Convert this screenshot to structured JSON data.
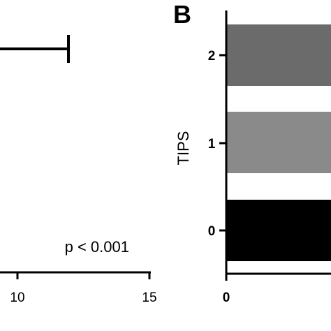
{
  "chart_data": [
    {
      "type": "scatter",
      "panel": "",
      "title": "",
      "xlabel": "",
      "ylabel": "",
      "xlim": [
        0,
        15
      ],
      "x_ticks": [
        "10",
        "15"
      ],
      "annotation": "p < 0.001",
      "series": [
        {
          "x": [],
          "y": [],
          "error_bar_upper_x": 12
        }
      ]
    },
    {
      "type": "bar",
      "orientation": "horizontal",
      "panel": "B",
      "title": "",
      "xlabel": "",
      "ylabel": "TIPS",
      "categories": [
        "0",
        "1",
        "2"
      ],
      "x_ticks": [
        "0"
      ],
      "colors": [
        "#000000",
        "#8a8a8a",
        "#6b6b6b"
      ]
    }
  ]
}
